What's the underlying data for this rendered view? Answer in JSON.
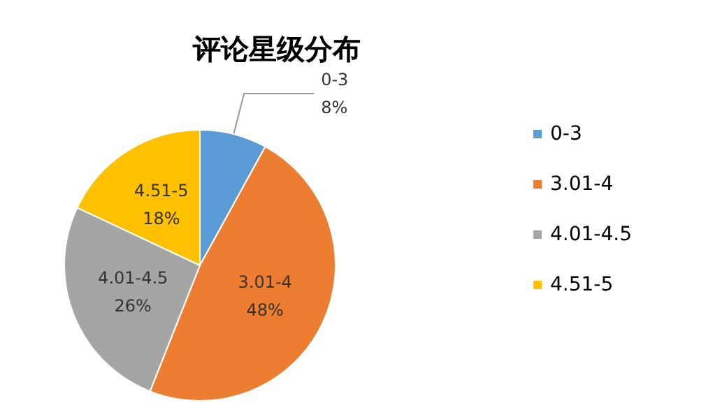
{
  "chart_data": {
    "type": "pie",
    "title": "评论星级分布",
    "categories": [
      "0-3",
      "3.01-4",
      "4.01-4.5",
      "4.51-5"
    ],
    "values": [
      8,
      48,
      26,
      18
    ],
    "colors": [
      "#5b9bd5",
      "#ed7d31",
      "#a5a5a5",
      "#ffc000"
    ],
    "value_labels": [
      "8%",
      "48%",
      "26%",
      "18%"
    ],
    "legend": "right"
  }
}
